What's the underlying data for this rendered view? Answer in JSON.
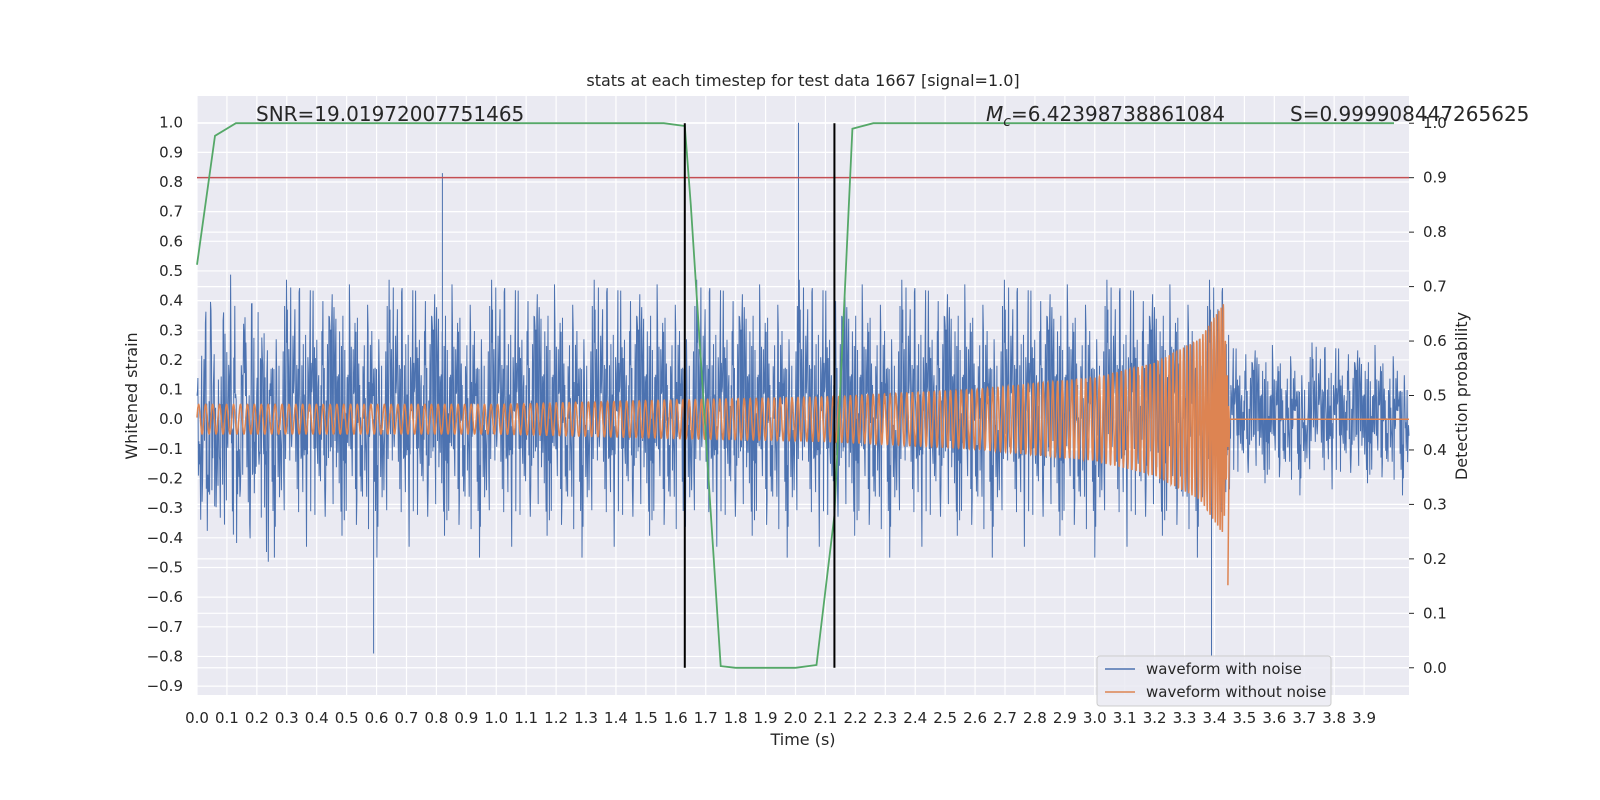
{
  "chart_data": {
    "type": "line",
    "title": "stats at each timestep for test data 1667 [signal=1.0]",
    "xlabel": "Time (s)",
    "ylabel": "Whitened strain",
    "y2label": "Detection probability",
    "xlim": [
      0.0,
      4.05
    ],
    "ylim": [
      -0.93,
      1.09
    ],
    "y2lim": [
      -0.05,
      1.05
    ],
    "grid": true,
    "legend_position": "lower right",
    "x_ticks": [
      "0.0",
      "0.1",
      "0.2",
      "0.3",
      "0.4",
      "0.5",
      "0.6",
      "0.7",
      "0.8",
      "0.9",
      "1.0",
      "1.1",
      "1.2",
      "1.3",
      "1.4",
      "1.5",
      "1.6",
      "1.7",
      "1.8",
      "1.9",
      "2.0",
      "2.1",
      "2.2",
      "2.3",
      "2.4",
      "2.5",
      "2.6",
      "2.7",
      "2.8",
      "2.9",
      "3.0",
      "3.1",
      "3.2",
      "3.3",
      "3.4",
      "3.5",
      "3.6",
      "3.7",
      "3.8",
      "3.9"
    ],
    "y_ticks": [
      "1.0",
      "0.9",
      "0.8",
      "0.7",
      "0.6",
      "0.5",
      "0.4",
      "0.3",
      "0.2",
      "0.1",
      "0.0",
      "−0.1",
      "−0.2",
      "−0.3",
      "−0.4",
      "−0.5",
      "−0.6",
      "−0.7",
      "−0.8",
      "−0.9"
    ],
    "y2_ticks": [
      "1.0",
      "0.9",
      "0.8",
      "0.7",
      "0.6",
      "0.5",
      "0.4",
      "0.3",
      "0.2",
      "0.1",
      "0.0"
    ],
    "annotations": {
      "snr": "SNR=19.01972007751465",
      "mc_symbol": "M",
      "mc_sub": "c",
      "mc_value": "=6.42398738861084",
      "s": "S=0.999908447265625"
    },
    "series": [
      {
        "name": "waveform with noise",
        "color": "#4c72b0",
        "description": "noisy whitened strain, roughly uniform amplitude about ±0.5 with spikes to ~0.83 and ~-0.8",
        "amplitude_typical": 0.5,
        "peaks": [
          [
            0.82,
            0.83
          ],
          [
            2.01,
            1.0
          ],
          [
            0.59,
            -0.79
          ],
          [
            3.39,
            -0.8
          ]
        ]
      },
      {
        "name": "waveform without noise",
        "color": "#dd8452",
        "description": "chirp signal with increasing frequency and amplitude, merger near 3.45 s",
        "envelope": [
          [
            0.0,
            0.05
          ],
          [
            1.0,
            0.05
          ],
          [
            1.6,
            0.065
          ],
          [
            2.1,
            0.075
          ],
          [
            2.6,
            0.1
          ],
          [
            3.0,
            0.14
          ],
          [
            3.2,
            0.19
          ],
          [
            3.35,
            0.27
          ],
          [
            3.43,
            0.39
          ],
          [
            3.45,
            0.0
          ]
        ],
        "min_at_merger": -0.56,
        "end_time": 3.45
      },
      {
        "name": "Detection probability",
        "color": "#55a868",
        "axis": "right",
        "x": [
          0.0,
          0.06,
          0.13,
          0.2,
          1.56,
          1.63,
          1.65,
          1.75,
          1.8,
          2.0,
          2.07,
          2.13,
          2.19,
          2.26,
          4.0
        ],
        "y": [
          0.74,
          0.977,
          1.0,
          1.0,
          1.0,
          0.995,
          0.85,
          0.003,
          0.0,
          0.0,
          0.005,
          0.28,
          0.99,
          1.0,
          1.0
        ]
      }
    ],
    "threshold": {
      "color": "#c44e52",
      "value_right_axis": 0.9
    },
    "vertical_markers": {
      "color": "#000000",
      "x": [
        1.63,
        2.13
      ]
    }
  }
}
